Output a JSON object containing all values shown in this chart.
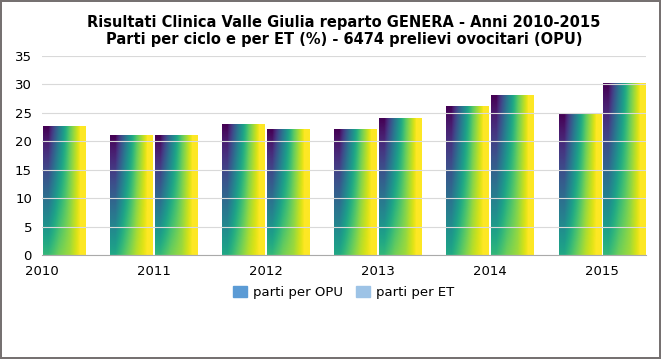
{
  "title_line1": "Risultati Clinica Valle Giulia reparto GENERA - Anni 2010-2015",
  "title_line2": "Parti per ciclo e per ET (%) - 6474 prelievi ovocitari (OPU)",
  "years": [
    "2010",
    "2011",
    "2012",
    "2013",
    "2014",
    "2015"
  ],
  "opu_values": [
    23.7,
    21.0,
    22.8,
    22.0,
    26.0,
    24.7
  ],
  "et_values": [
    22.6,
    21.0,
    22.0,
    24.0,
    28.0,
    30.0
  ],
  "opu_color_top": "#5B9BD5",
  "opu_color_bottom": "#BDD7EE",
  "et_color_top": "#9DC3E6",
  "et_color_bottom": "#DEEAF1",
  "background_color": "#FFFFFF",
  "figure_edge_color": "#767171",
  "ylim": [
    0,
    35
  ],
  "yticks": [
    0,
    5,
    10,
    15,
    20,
    25,
    30,
    35
  ],
  "legend_opu": "parti per OPU",
  "legend_et": "parti per ET",
  "bar_width": 0.38,
  "title_fontsize": 10.5,
  "tick_fontsize": 9.5,
  "legend_fontsize": 9.5,
  "grid_color": "#D9D9D9"
}
